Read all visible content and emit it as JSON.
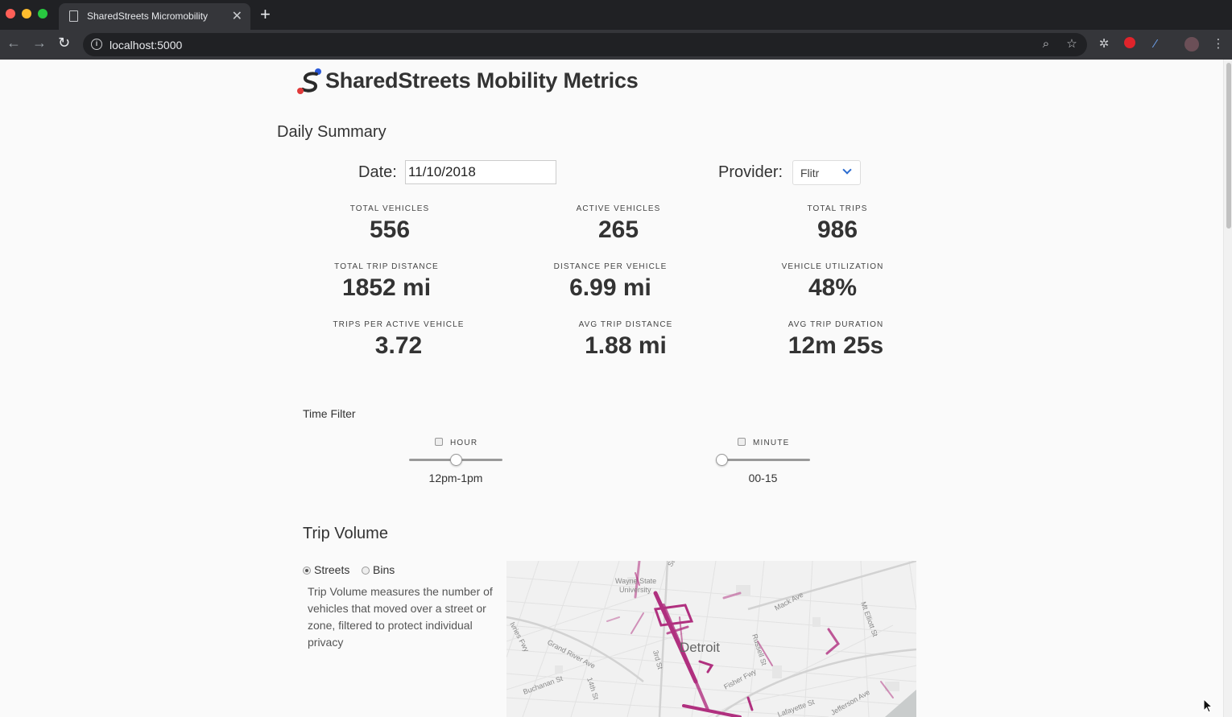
{
  "browser": {
    "tab_title": "SharedStreets Micromobility",
    "url": "localhost:5000",
    "colors": {
      "close": "#ff5f57",
      "minimize": "#febc2e",
      "maximize": "#28c840"
    }
  },
  "header": {
    "brand": "SharedStreets Mobility Metrics"
  },
  "daily_summary": {
    "heading": "Daily Summary",
    "date_label": "Date:",
    "date_value": "11/10/2018",
    "provider_label": "Provider:",
    "provider_value": "Flitr",
    "stats": [
      {
        "label": "TOTAL VEHICLES",
        "value": "556"
      },
      {
        "label": "ACTIVE VEHICLES",
        "value": "265"
      },
      {
        "label": "TOTAL TRIPS",
        "value": "986"
      },
      {
        "label": "TOTAL TRIP DISTANCE",
        "value": "1852 mi"
      },
      {
        "label": "DISTANCE PER VEHICLE",
        "value": "6.99 mi"
      },
      {
        "label": "VEHICLE UTILIZATION",
        "value": "48%"
      },
      {
        "label": "TRIPS PER ACTIVE VEHICLE",
        "value": "3.72"
      },
      {
        "label": "AVG TRIP DISTANCE",
        "value": "1.88 mi"
      },
      {
        "label": "AVG TRIP DURATION",
        "value": "12m 25s"
      }
    ]
  },
  "time_filter": {
    "heading": "Time Filter",
    "hour": {
      "label": "HOUR",
      "value": "12pm-1pm",
      "position_fraction": 0.5
    },
    "minute": {
      "label": "MINUTE",
      "value": "00-15",
      "position_fraction": 0.0
    }
  },
  "trip_volume": {
    "heading": "Trip Volume",
    "options": [
      "Streets",
      "Bins"
    ],
    "selected": "Streets",
    "description": "Trip Volume measures the number of vehicles that moved over a street or zone, filtered to protect individual privacy",
    "map": {
      "city_label": "Detroit",
      "street_labels": [
        "Wayne State",
        "University",
        "Mack Ave",
        "Mt Elliott St",
        "Grand River Ave",
        "3rd St",
        "Russell St",
        "Fisher Fwy",
        "Buchanan St",
        "14th St",
        "Lafayette St",
        "Jefferson Ave",
        "Ivries Fwy",
        "St"
      ],
      "accent": "#b0307f"
    }
  }
}
